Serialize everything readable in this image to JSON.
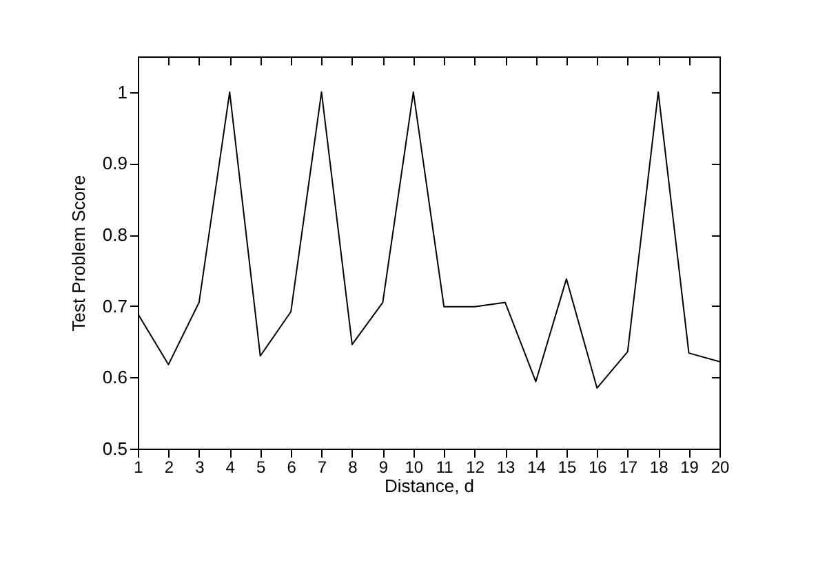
{
  "chart_data": {
    "type": "line",
    "xlabel": "Distance, d",
    "ylabel": "Test Problem Score",
    "x": [
      1,
      2,
      3,
      4,
      5,
      6,
      7,
      8,
      9,
      10,
      11,
      12,
      13,
      14,
      15,
      16,
      17,
      18,
      19,
      20
    ],
    "series": [
      {
        "color": "#000000",
        "values": [
          0.689,
          0.618,
          0.705,
          1.0,
          0.63,
          0.692,
          1.0,
          0.646,
          0.705,
          1.0,
          0.699,
          0.699,
          0.705,
          0.594,
          0.738,
          0.585,
          0.636,
          1.0,
          0.634,
          0.622
        ]
      }
    ],
    "xlim": [
      1,
      20
    ],
    "xticks": [
      1,
      2,
      3,
      4,
      5,
      6,
      7,
      8,
      9,
      10,
      11,
      12,
      13,
      14,
      15,
      16,
      17,
      18,
      19,
      20
    ],
    "ylim": [
      0.5,
      1.05
    ],
    "yticks": [
      0.5,
      0.6,
      0.7,
      0.8,
      0.9,
      1
    ],
    "grid": false,
    "marker": "none",
    "line_style": "solid"
  }
}
